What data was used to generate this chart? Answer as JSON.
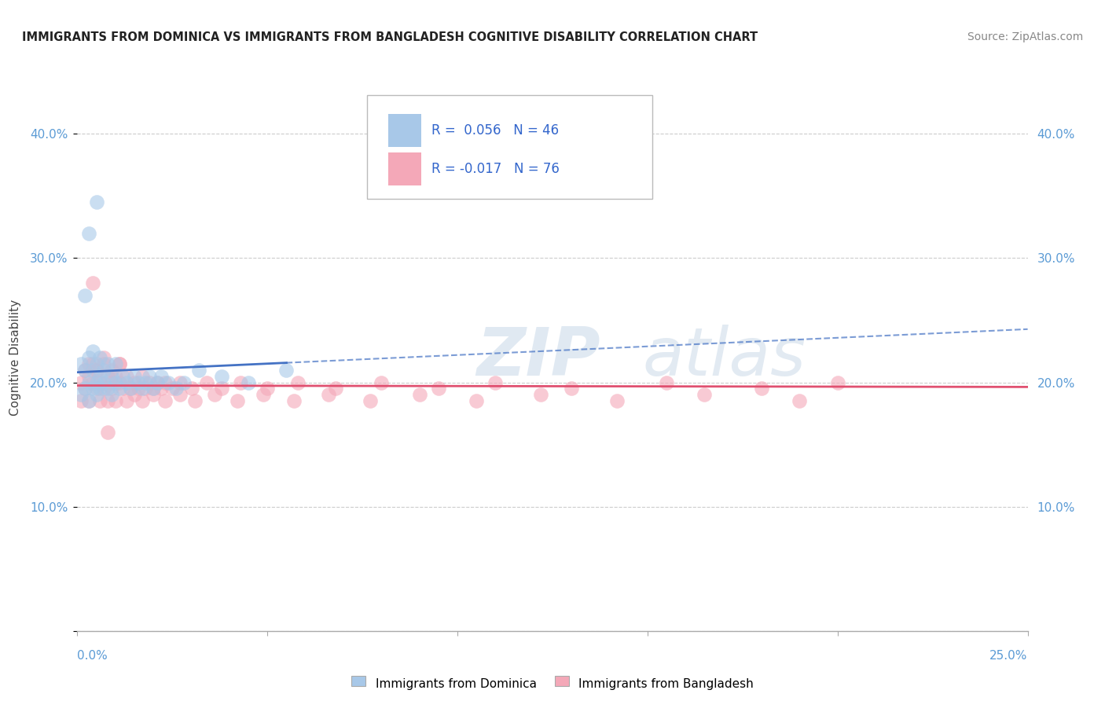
{
  "title": "IMMIGRANTS FROM DOMINICA VS IMMIGRANTS FROM BANGLADESH COGNITIVE DISABILITY CORRELATION CHART",
  "source": "Source: ZipAtlas.com",
  "ylabel": "Cognitive Disability",
  "legend1_r": "R =  0.056",
  "legend1_n": "N = 46",
  "legend2_r": "R = -0.017",
  "legend2_n": "N = 76",
  "color_blue": "#a8c8e8",
  "color_pink": "#f4a8b8",
  "color_blue_line": "#4472c4",
  "color_pink_line": "#e05070",
  "xlim": [
    0,
    0.25
  ],
  "ylim": [
    0,
    0.44
  ],
  "yticks": [
    0.0,
    0.1,
    0.2,
    0.3,
    0.4
  ],
  "blue_x": [
    0.001,
    0.001,
    0.002,
    0.002,
    0.003,
    0.003,
    0.003,
    0.004,
    0.004,
    0.004,
    0.005,
    0.005,
    0.005,
    0.006,
    0.006,
    0.006,
    0.007,
    0.007,
    0.008,
    0.008,
    0.009,
    0.009,
    0.01,
    0.01,
    0.011,
    0.012,
    0.013,
    0.014,
    0.015,
    0.016,
    0.017,
    0.018,
    0.019,
    0.02,
    0.021,
    0.022,
    0.024,
    0.026,
    0.028,
    0.032,
    0.038,
    0.045,
    0.055,
    0.002,
    0.003,
    0.005
  ],
  "blue_y": [
    0.19,
    0.215,
    0.195,
    0.21,
    0.2,
    0.22,
    0.185,
    0.21,
    0.195,
    0.225,
    0.2,
    0.215,
    0.19,
    0.205,
    0.22,
    0.195,
    0.21,
    0.2,
    0.215,
    0.195,
    0.205,
    0.19,
    0.2,
    0.215,
    0.195,
    0.205,
    0.2,
    0.195,
    0.205,
    0.2,
    0.195,
    0.2,
    0.205,
    0.195,
    0.2,
    0.205,
    0.2,
    0.195,
    0.2,
    0.21,
    0.205,
    0.2,
    0.21,
    0.27,
    0.32,
    0.345
  ],
  "pink_x": [
    0.001,
    0.001,
    0.002,
    0.002,
    0.003,
    0.003,
    0.004,
    0.004,
    0.005,
    0.005,
    0.006,
    0.006,
    0.007,
    0.007,
    0.008,
    0.008,
    0.009,
    0.009,
    0.01,
    0.01,
    0.011,
    0.011,
    0.012,
    0.013,
    0.014,
    0.015,
    0.016,
    0.017,
    0.018,
    0.019,
    0.02,
    0.021,
    0.022,
    0.023,
    0.025,
    0.027,
    0.03,
    0.034,
    0.038,
    0.043,
    0.05,
    0.058,
    0.068,
    0.08,
    0.095,
    0.11,
    0.13,
    0.155,
    0.18,
    0.2,
    0.003,
    0.005,
    0.007,
    0.009,
    0.011,
    0.013,
    0.015,
    0.017,
    0.02,
    0.023,
    0.027,
    0.031,
    0.036,
    0.042,
    0.049,
    0.057,
    0.066,
    0.077,
    0.09,
    0.105,
    0.122,
    0.142,
    0.165,
    0.19,
    0.004,
    0.008
  ],
  "pink_y": [
    0.2,
    0.185,
    0.21,
    0.195,
    0.205,
    0.185,
    0.2,
    0.215,
    0.195,
    0.21,
    0.185,
    0.2,
    0.215,
    0.195,
    0.205,
    0.185,
    0.2,
    0.195,
    0.205,
    0.185,
    0.2,
    0.215,
    0.195,
    0.205,
    0.195,
    0.2,
    0.195,
    0.205,
    0.195,
    0.2,
    0.195,
    0.2,
    0.195,
    0.2,
    0.195,
    0.2,
    0.195,
    0.2,
    0.195,
    0.2,
    0.195,
    0.2,
    0.195,
    0.2,
    0.195,
    0.2,
    0.195,
    0.2,
    0.195,
    0.2,
    0.215,
    0.21,
    0.22,
    0.21,
    0.215,
    0.185,
    0.19,
    0.185,
    0.19,
    0.185,
    0.19,
    0.185,
    0.19,
    0.185,
    0.19,
    0.185,
    0.19,
    0.185,
    0.19,
    0.185,
    0.19,
    0.185,
    0.19,
    0.185,
    0.28,
    0.16
  ]
}
